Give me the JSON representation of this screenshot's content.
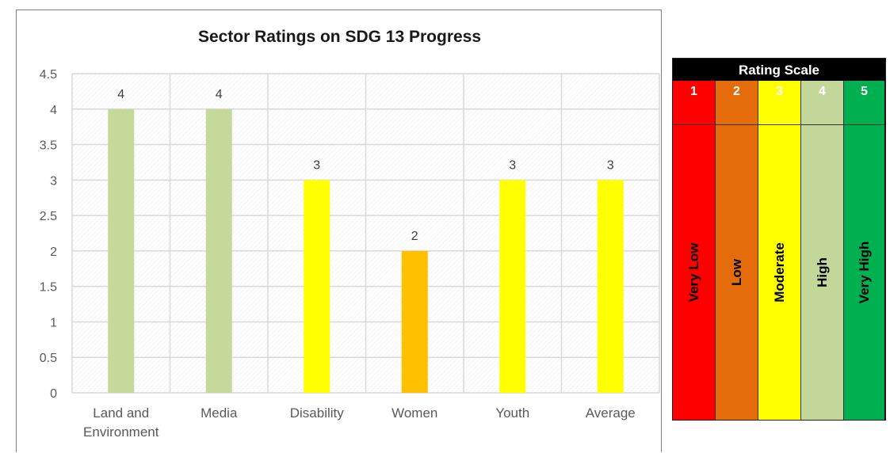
{
  "chart_data": {
    "type": "bar",
    "title": "Sector Ratings on SDG 13 Progress",
    "categories": [
      "Land and Environment",
      "Media",
      "Disability",
      "Women",
      "Youth",
      "Average"
    ],
    "category_lines": [
      [
        "Land and",
        "Environment"
      ],
      [
        "Media"
      ],
      [
        "Disability"
      ],
      [
        "Women"
      ],
      [
        "Youth"
      ],
      [
        "Average"
      ]
    ],
    "values": [
      4,
      4,
      3,
      2,
      3,
      3
    ],
    "data_labels": [
      "4",
      "4",
      "3",
      "2",
      "3",
      "3"
    ],
    "bar_colors": [
      "#c5d99b",
      "#c5d99b",
      "#ffff00",
      "#ffc000",
      "#ffff00",
      "#ffff00"
    ],
    "ylim": [
      0,
      4.5
    ],
    "yticks": [
      0,
      0.5,
      1,
      1.5,
      2,
      2.5,
      3,
      3.5,
      4,
      4.5
    ],
    "ytick_labels": [
      "0",
      "0.5",
      "1",
      "1.5",
      "2",
      "2.5",
      "3",
      "3.5",
      "4",
      "4.5"
    ],
    "xlabel": "",
    "ylabel": "",
    "grid": true,
    "legend": "none"
  },
  "rating_scale": {
    "header": "Rating Scale",
    "levels": [
      {
        "num": "1",
        "label": "Very Low",
        "color": "#ff0000",
        "text_color": "#ffffff",
        "label_color": "#000000"
      },
      {
        "num": "2",
        "label": "Low",
        "color": "#e46c0a",
        "text_color": "#ffffff",
        "label_color": "#000000"
      },
      {
        "num": "3",
        "label": "Moderate",
        "color": "#ffff00",
        "text_color": "#ffffff",
        "label_color": "#000000"
      },
      {
        "num": "4",
        "label": "High",
        "color": "#c4d79b",
        "text_color": "#ffffff",
        "label_color": "#000000"
      },
      {
        "num": "5",
        "label": "Very High",
        "color": "#00b050",
        "text_color": "#ffffff",
        "label_color": "#000000"
      }
    ]
  }
}
